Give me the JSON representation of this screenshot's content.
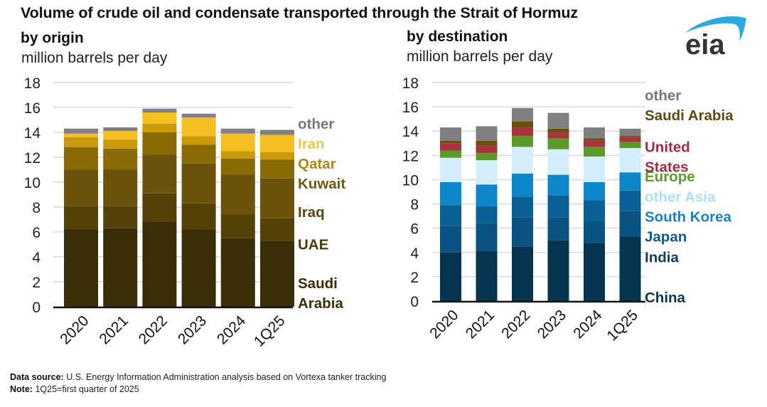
{
  "title": "Volume of crude oil and condensate transported through the Strait of Hormuz",
  "logo": {
    "text": "eia",
    "icon": "eia-logo-icon",
    "arc_color": "#2aa9e0",
    "text_color": "#333333"
  },
  "footer": {
    "source_label": "Data source:",
    "source_text": "U.S. Energy Information Administration analysis based on Vortexa tanker tracking",
    "note_label": "Note:",
    "note_text": "1Q25=first quarter of 2025"
  },
  "chart_data": [
    {
      "type": "bar",
      "stacked": true,
      "title": "by origin",
      "ylabel": "million barrels per day",
      "xlabel": "",
      "ylim": [
        0,
        18
      ],
      "yticks": [
        0,
        2,
        4,
        6,
        8,
        10,
        12,
        14,
        16,
        18
      ],
      "grid": true,
      "legend_placement": "right (direct labels)",
      "categories": [
        "2020",
        "2021",
        "2022",
        "2023",
        "2024",
        "1Q25"
      ],
      "series": [
        {
          "name": "Saudi Arabia",
          "label_lines": [
            "Saudi",
            "Arabia"
          ],
          "color": "#3a2e06",
          "label_color": "#3a2e06",
          "label_at": 1.9,
          "values": [
            6.2,
            6.3,
            6.8,
            6.2,
            5.5,
            5.3
          ]
        },
        {
          "name": "UAE",
          "label_lines": [
            "UAE"
          ],
          "color": "#55420a",
          "label_color": "#4a3c0c",
          "label_at": 5.0,
          "values": [
            1.9,
            1.8,
            2.3,
            2.1,
            1.9,
            1.8
          ]
        },
        {
          "name": "Iraq",
          "label_lines": [
            "Iraq"
          ],
          "color": "#6b530b",
          "label_color": "#5a4710",
          "label_at": 7.6,
          "values": [
            2.9,
            2.9,
            3.1,
            3.2,
            3.2,
            3.2
          ]
        },
        {
          "name": "Kuwait",
          "label_lines": [
            "Kuwait"
          ],
          "color": "#8a6a07",
          "label_color": "#6e5a12",
          "label_at": 9.9,
          "values": [
            1.8,
            1.7,
            1.8,
            1.5,
            1.3,
            1.5
          ]
        },
        {
          "name": "Qatar",
          "label_lines": [
            "Qatar"
          ],
          "color": "#c99a0a",
          "label_color": "#a88b1c",
          "label_at": 11.5,
          "values": [
            0.8,
            0.7,
            0.7,
            0.7,
            0.6,
            0.6
          ]
        },
        {
          "name": "Iran",
          "label_lines": [
            "Iran"
          ],
          "color": "#f3bf22",
          "label_color": "#e8c84a",
          "label_at": 13.1,
          "values": [
            0.3,
            0.7,
            0.9,
            1.5,
            1.4,
            1.4
          ]
        },
        {
          "name": "other",
          "label_lines": [
            "other"
          ],
          "color": "#808080",
          "label_color": "#777777",
          "label_at": 14.7,
          "values": [
            0.4,
            0.3,
            0.3,
            0.3,
            0.4,
            0.4
          ]
        }
      ]
    },
    {
      "type": "bar",
      "stacked": true,
      "title": "by destination",
      "ylabel": "million barrels per day",
      "xlabel": "",
      "ylim": [
        0,
        18
      ],
      "yticks": [
        0,
        2,
        4,
        6,
        8,
        10,
        12,
        14,
        16,
        18
      ],
      "grid": true,
      "legend_placement": "right (direct labels)",
      "categories": [
        "2020",
        "2021",
        "2022",
        "2023",
        "2024",
        "1Q25"
      ],
      "series": [
        {
          "name": "China",
          "label_lines": [
            "China"
          ],
          "color": "#06344f",
          "label_color": "#0d3550",
          "label_at": 0.3,
          "values": [
            4.0,
            4.1,
            4.5,
            5.0,
            4.8,
            5.3
          ]
        },
        {
          "name": "India",
          "label_lines": [
            "India"
          ],
          "color": "#0a5282",
          "label_color": "#123c5a",
          "label_at": 3.6,
          "values": [
            2.2,
            2.3,
            2.4,
            1.9,
            1.8,
            2.1
          ]
        },
        {
          "name": "Japan",
          "label_lines": [
            "Japan"
          ],
          "color": "#0a5f94",
          "label_color": "#145a88",
          "label_at": 5.3,
          "values": [
            1.7,
            1.4,
            1.7,
            1.8,
            1.7,
            1.7
          ]
        },
        {
          "name": "South Korea",
          "label_lines": [
            "South Korea"
          ],
          "color": "#0f86c8",
          "label_color": "#1a82b6",
          "label_at": 6.95,
          "values": [
            1.9,
            1.8,
            1.9,
            1.7,
            1.5,
            1.5
          ]
        },
        {
          "name": "other Asia",
          "label_lines": [
            "other Asia"
          ],
          "color": "#2cb8f2",
          "label_color": "#aee0f5",
          "label_at": 8.6,
          "values": [
            2.0,
            2.0,
            2.2,
            2.1,
            2.1,
            2.0
          ]
        },
        {
          "name": "Europe",
          "label_lines": [
            "Europe"
          ],
          "color": "#5d9a2c",
          "label_color": "#5e9a32",
          "label_at": 10.25,
          "values": [
            0.6,
            0.6,
            0.9,
            0.9,
            0.8,
            0.5
          ]
        },
        {
          "name": "United States",
          "label_lines": [
            "United",
            "States"
          ],
          "color": "#a8323e",
          "label_color": "#9c2e42",
          "label_at": 12.7,
          "values": [
            0.6,
            0.6,
            0.7,
            0.5,
            0.5,
            0.4
          ]
        },
        {
          "name": "Saudi Arabia",
          "label_lines": [
            "Saudi Arabia"
          ],
          "color": "#6b4f06",
          "label_color": "#5a4a14",
          "label_at": 15.3,
          "values": [
            0.2,
            0.4,
            0.5,
            0.3,
            0.2,
            0.1
          ]
        },
        {
          "name": "other",
          "label_lines": [
            "other"
          ],
          "color": "#808080",
          "label_color": "#777777",
          "label_at": 16.95,
          "values": [
            1.1,
            1.2,
            1.1,
            1.3,
            0.9,
            0.6
          ]
        }
      ],
      "note_on_other_asia_band": "light sky band between other Asia and Europe segments",
      "extra_band": {
        "name": "other Asia (light)",
        "color": "#d4effb"
      }
    }
  ]
}
